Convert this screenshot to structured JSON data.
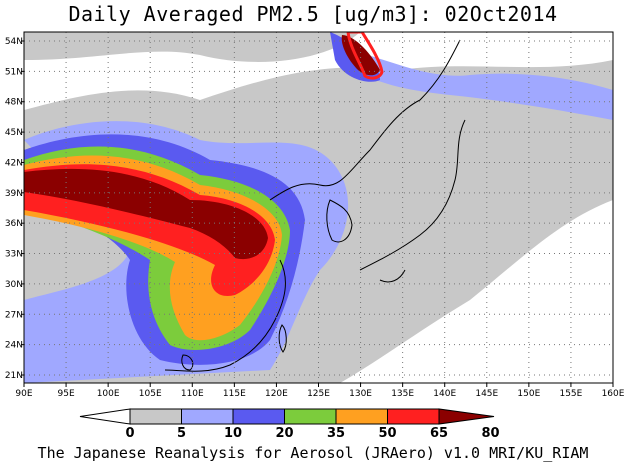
{
  "title": "Daily Averaged PM2.5 [ug/m3]: 02Oct2014",
  "footer": "The Japanese Reanalysis for Aerosol (JRAero) v1.0 MRI/KU_RIAM",
  "map": {
    "lon_labels": [
      "90E",
      "95E",
      "100E",
      "105E",
      "110E",
      "115E",
      "120E",
      "125E",
      "130E",
      "135E",
      "140E",
      "145E",
      "150E",
      "155E",
      "160E"
    ],
    "lat_labels": [
      "54N",
      "51N",
      "48N",
      "45N",
      "42N",
      "39N",
      "36N",
      "33N",
      "30N",
      "27N",
      "24N",
      "21N"
    ],
    "lon_range": [
      90,
      160
    ],
    "lat_range": [
      20,
      55
    ]
  },
  "colorbar": {
    "labels": [
      "0",
      "5",
      "10",
      "20",
      "35",
      "50",
      "65",
      "80"
    ],
    "colors": [
      "#ffffff",
      "#c8c8c8",
      "#a0a8ff",
      "#5a5af0",
      "#7ccc3c",
      "#ffa020",
      "#ff2020",
      "#8b0000"
    ]
  }
}
